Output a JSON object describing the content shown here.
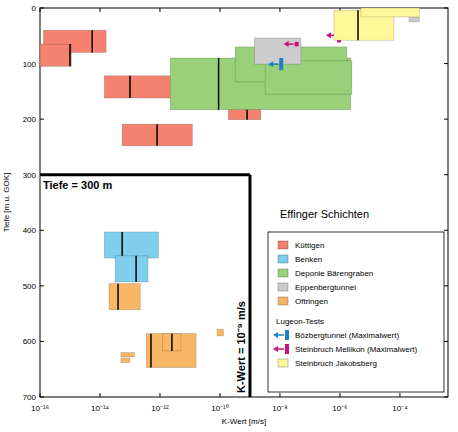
{
  "chart_data": {
    "type": "range_box",
    "title": "Effinger Schichten",
    "x_label": "K-Wert [m/s]",
    "y_label": "Tiefe [m u. GOK]",
    "log": "x",
    "legend": "lower right",
    "legend_subtitle": "Lugeon-Tests",
    "xlim": [
      1e-16,
      0.004
    ],
    "ylim": [
      700,
      0
    ],
    "xticks": [
      {
        "value": 1e-16,
        "label": "10⁻¹⁶"
      },
      {
        "value": 1e-14,
        "label": "10⁻¹⁴"
      },
      {
        "value": 1e-12,
        "label": "10⁻¹²"
      },
      {
        "value": 1e-10,
        "label": "10⁻¹⁰"
      },
      {
        "value": 1e-08,
        "label": "10⁻⁸"
      },
      {
        "value": 1e-06,
        "label": "10⁻⁶"
      },
      {
        "value": 0.0001,
        "label": "10⁻⁴"
      }
    ],
    "yticks": [
      0,
      100,
      200,
      300,
      400,
      500,
      600,
      700
    ],
    "annotations": [
      {
        "text": "Tiefe = 300 m",
        "depth": 300
      },
      {
        "text": "K-Wert = 10⁻⁹ m/s",
        "k": 1e-09
      }
    ],
    "series": [
      {
        "name": "Küttigen",
        "color": "#f4826f",
        "marker": "box",
        "k_min": [
          1.3e-16,
          1e-16,
          1.4e-14,
          1.9e-10,
          5.5e-14
        ],
        "k_max": [
          1.6e-14,
          1.1e-15,
          7.6e-12,
          2.3e-09,
          1.2e-11
        ],
        "depth_min": [
          40,
          65,
          122,
          162,
          209
        ],
        "depth_max": [
          80,
          105,
          162,
          201,
          248
        ],
        "k_median": [
          5.5e-15,
          1e-15,
          1e-13,
          8e-10,
          8e-13
        ]
      },
      {
        "name": "Benken",
        "color": "#7fcfec",
        "marker": "box",
        "k_min": [
          1.4e-14,
          3.2e-14
        ],
        "k_max": [
          8.9e-13,
          4e-13
        ],
        "depth_min": [
          403,
          446
        ],
        "depth_max": [
          450,
          493
        ],
        "k_median": [
          5.5e-14,
          1.6e-13
        ]
      },
      {
        "name": "Deponie Bärengraben",
        "color": "#99d17b",
        "marker": "box",
        "k_min": [
          2.2e-12,
          3.2e-10,
          3.2e-09
        ],
        "k_max": [
          2.3e-06,
          1.7e-06,
          2.5e-06
        ],
        "depth_min": [
          90,
          70,
          95
        ],
        "depth_max": [
          183,
          133,
          155
        ],
        "k_median": [
          9e-11,
          1.5e-08,
          null
        ]
      },
      {
        "name": "Eppenbergtunnel",
        "color": "#cccccc",
        "marker": "box",
        "k_min": [
          1.4e-09,
          0.0002
        ],
        "k_max": [
          5e-08,
          0.00044
        ],
        "depth_min": [
          54,
          16
        ],
        "depth_max": [
          101,
          25
        ],
        "k_median": [
          null,
          null
        ]
      },
      {
        "name": "Oftringen",
        "color": "#f8b766",
        "marker": "box",
        "k_min": [
          2e-14,
          3.5e-13,
          1.2e-12,
          5e-14,
          5e-14,
          8e-11
        ],
        "k_max": [
          2.2e-13,
          1.6e-11,
          5e-12,
          1.4e-13,
          1e-13,
          1.3e-10
        ],
        "depth_min": [
          496,
          586,
          586,
          620,
          630,
          578
        ],
        "depth_max": [
          543,
          647,
          617,
          628,
          638,
          590
        ],
        "k_median": [
          4e-14,
          5e-13,
          2.5e-12,
          null,
          null,
          null
        ]
      },
      {
        "name": "Bözbergtunnel (Maximalwert)",
        "color": "#1f7fc0",
        "marker": "arrow",
        "k": [
          1.1e-08
        ],
        "depth_min": [
          90
        ],
        "depth_max": [
          112
        ]
      },
      {
        "name": "Steinbruch Mellikon (Maximalwert)",
        "color": "#c8127a",
        "marker": "arrow",
        "k": [
          9.3e-07,
          3.6e-08
        ],
        "depth_min": [
          36,
          61
        ],
        "depth_max": [
          62,
          69
        ]
      },
      {
        "name": "Steinbruch Jakobsberg",
        "color": "#fff79a",
        "marker": "box",
        "k_min": [
          6.3e-07,
          5e-06
        ],
        "k_max": [
          6.3e-05,
          0.00045
        ],
        "depth_min": [
          4,
          0
        ],
        "depth_max": [
          58,
          16
        ],
        "k_median": [
          4e-06,
          null
        ]
      }
    ]
  }
}
